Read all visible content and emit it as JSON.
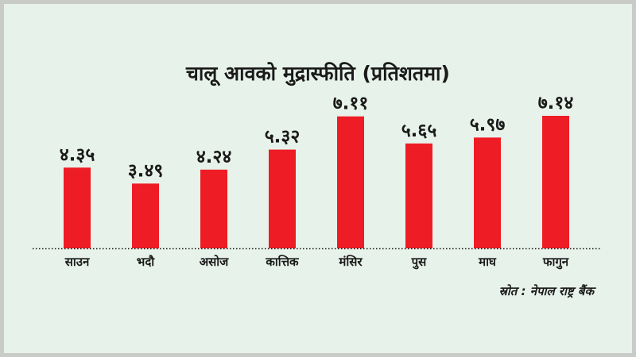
{
  "chart_data": {
    "type": "bar",
    "title": "चालू आवको मुद्रास्फीति (प्रतिशतमा)",
    "xlabel": "",
    "ylabel": "",
    "categories": [
      "साउन",
      "भदौ",
      "असोज",
      "कात्तिक",
      "मंसिर",
      "पुस",
      "माघ",
      "फागुन"
    ],
    "values": [
      4.35,
      3.49,
      4.24,
      5.32,
      7.11,
      5.65,
      5.97,
      7.14
    ],
    "value_labels": [
      "४.३५",
      "३.४९",
      "४.२४",
      "५.३२",
      "७.११",
      "५.६५",
      "५.९७",
      "७.१४"
    ],
    "ylim": [
      0,
      7.14
    ],
    "grid": false,
    "legend": "none",
    "bar_color": "#ee1c25",
    "baseline_style": "dotted"
  },
  "source": "स्रोत : नेपाल राष्ट्र बैंक"
}
